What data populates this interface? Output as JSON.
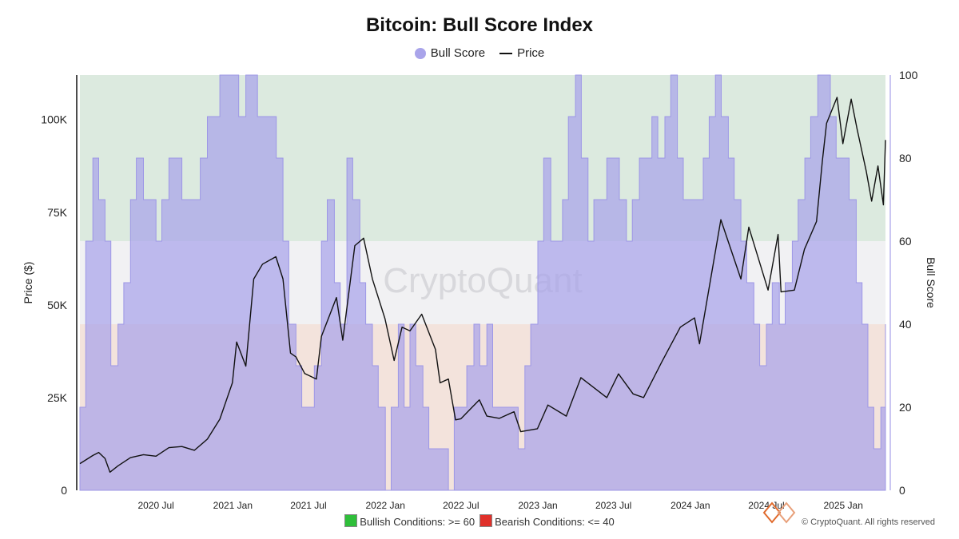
{
  "chart_data": {
    "type": "area",
    "title": "Bitcoin: Bull Score Index",
    "watermark": "CryptoQuant",
    "legend": [
      "Bull Score",
      "Price"
    ],
    "ylabel_left": "Price ($)",
    "ylabel_right": "Bull Score",
    "ylim_left": [
      0,
      112000
    ],
    "ylim_right": [
      0,
      100
    ],
    "yticks_left": [
      {
        "v": 0,
        "label": "0"
      },
      {
        "v": 25000,
        "label": "25K"
      },
      {
        "v": 50000,
        "label": "50K"
      },
      {
        "v": 75000,
        "label": "75K"
      },
      {
        "v": 100000,
        "label": "100K"
      }
    ],
    "yticks_right": [
      0,
      20,
      40,
      60,
      80,
      100
    ],
    "xlim": [
      "2020-01-01",
      "2025-04-12"
    ],
    "xticks": [
      {
        "date": "2020-07-01",
        "label": "2020 Jul"
      },
      {
        "date": "2021-01-01",
        "label": "2021 Jan"
      },
      {
        "date": "2021-07-01",
        "label": "2021 Jul"
      },
      {
        "date": "2022-01-01",
        "label": "2022 Jan"
      },
      {
        "date": "2022-07-01",
        "label": "2022 Jul"
      },
      {
        "date": "2023-01-01",
        "label": "2023 Jan"
      },
      {
        "date": "2023-07-01",
        "label": "2023 Jul"
      },
      {
        "date": "2024-01-01",
        "label": "2024 Jan"
      },
      {
        "date": "2024-07-01",
        "label": "2024 Jul"
      },
      {
        "date": "2025-01-01",
        "label": "2025 Jan"
      }
    ],
    "zones": [
      {
        "from": 60,
        "to": 100,
        "color": "#dceadf"
      },
      {
        "from": 40,
        "to": 60,
        "color": "#f1f1f3"
      },
      {
        "from": 0,
        "to": 40,
        "color": "#f3e3dc"
      }
    ],
    "bull_score": {
      "name": "Bull Score",
      "color": "#a9a4ea",
      "points": [
        [
          "2020-01-01",
          20
        ],
        [
          "2020-01-15",
          60
        ],
        [
          "2020-02-01",
          80
        ],
        [
          "2020-02-15",
          70
        ],
        [
          "2020-03-01",
          60
        ],
        [
          "2020-03-15",
          30
        ],
        [
          "2020-04-01",
          40
        ],
        [
          "2020-04-15",
          50
        ],
        [
          "2020-05-01",
          70
        ],
        [
          "2020-05-15",
          80
        ],
        [
          "2020-06-01",
          70
        ],
        [
          "2020-06-15",
          70
        ],
        [
          "2020-07-01",
          60
        ],
        [
          "2020-07-15",
          70
        ],
        [
          "2020-08-01",
          80
        ],
        [
          "2020-08-15",
          80
        ],
        [
          "2020-09-01",
          70
        ],
        [
          "2020-09-15",
          70
        ],
        [
          "2020-10-01",
          70
        ],
        [
          "2020-10-15",
          80
        ],
        [
          "2020-11-01",
          90
        ],
        [
          "2020-11-15",
          90
        ],
        [
          "2020-12-01",
          100
        ],
        [
          "2020-12-15",
          100
        ],
        [
          "2021-01-01",
          100
        ],
        [
          "2021-01-15",
          90
        ],
        [
          "2021-02-01",
          100
        ],
        [
          "2021-02-15",
          100
        ],
        [
          "2021-03-01",
          90
        ],
        [
          "2021-03-15",
          90
        ],
        [
          "2021-04-01",
          90
        ],
        [
          "2021-04-15",
          80
        ],
        [
          "2021-05-01",
          60
        ],
        [
          "2021-05-15",
          40
        ],
        [
          "2021-06-01",
          30
        ],
        [
          "2021-06-15",
          20
        ],
        [
          "2021-07-01",
          20
        ],
        [
          "2021-07-15",
          30
        ],
        [
          "2021-08-01",
          60
        ],
        [
          "2021-08-15",
          70
        ],
        [
          "2021-09-01",
          50
        ],
        [
          "2021-09-15",
          40
        ],
        [
          "2021-10-01",
          80
        ],
        [
          "2021-10-15",
          70
        ],
        [
          "2021-11-01",
          50
        ],
        [
          "2021-11-15",
          40
        ],
        [
          "2021-12-01",
          30
        ],
        [
          "2021-12-15",
          20
        ],
        [
          "2022-01-01",
          0
        ],
        [
          "2022-01-15",
          20
        ],
        [
          "2022-02-01",
          40
        ],
        [
          "2022-02-15",
          20
        ],
        [
          "2022-03-01",
          40
        ],
        [
          "2022-03-15",
          30
        ],
        [
          "2022-04-01",
          20
        ],
        [
          "2022-04-15",
          10
        ],
        [
          "2022-05-01",
          10
        ],
        [
          "2022-05-15",
          10
        ],
        [
          "2022-06-01",
          0
        ],
        [
          "2022-06-15",
          20
        ],
        [
          "2022-07-01",
          20
        ],
        [
          "2022-07-15",
          30
        ],
        [
          "2022-08-01",
          40
        ],
        [
          "2022-08-15",
          30
        ],
        [
          "2022-09-01",
          40
        ],
        [
          "2022-09-15",
          20
        ],
        [
          "2022-10-01",
          20
        ],
        [
          "2022-10-15",
          20
        ],
        [
          "2022-11-01",
          20
        ],
        [
          "2022-11-15",
          10
        ],
        [
          "2022-12-01",
          30
        ],
        [
          "2022-12-15",
          40
        ],
        [
          "2023-01-01",
          60
        ],
        [
          "2023-01-15",
          80
        ],
        [
          "2023-02-01",
          60
        ],
        [
          "2023-02-15",
          60
        ],
        [
          "2023-03-01",
          70
        ],
        [
          "2023-03-15",
          90
        ],
        [
          "2023-04-01",
          100
        ],
        [
          "2023-04-15",
          80
        ],
        [
          "2023-05-01",
          60
        ],
        [
          "2023-05-15",
          70
        ],
        [
          "2023-06-01",
          70
        ],
        [
          "2023-06-15",
          80
        ],
        [
          "2023-07-01",
          80
        ],
        [
          "2023-07-15",
          70
        ],
        [
          "2023-08-01",
          60
        ],
        [
          "2023-08-15",
          70
        ],
        [
          "2023-09-01",
          80
        ],
        [
          "2023-09-15",
          80
        ],
        [
          "2023-10-01",
          90
        ],
        [
          "2023-10-15",
          80
        ],
        [
          "2023-11-01",
          90
        ],
        [
          "2023-11-15",
          100
        ],
        [
          "2023-12-01",
          80
        ],
        [
          "2023-12-15",
          70
        ],
        [
          "2024-01-01",
          70
        ],
        [
          "2024-01-15",
          70
        ],
        [
          "2024-02-01",
          80
        ],
        [
          "2024-02-15",
          90
        ],
        [
          "2024-03-01",
          100
        ],
        [
          "2024-03-15",
          90
        ],
        [
          "2024-04-01",
          80
        ],
        [
          "2024-04-15",
          70
        ],
        [
          "2024-05-01",
          60
        ],
        [
          "2024-05-15",
          50
        ],
        [
          "2024-06-01",
          40
        ],
        [
          "2024-06-15",
          30
        ],
        [
          "2024-07-01",
          40
        ],
        [
          "2024-07-15",
          50
        ],
        [
          "2024-08-01",
          40
        ],
        [
          "2024-08-15",
          50
        ],
        [
          "2024-09-01",
          60
        ],
        [
          "2024-09-15",
          70
        ],
        [
          "2024-10-01",
          80
        ],
        [
          "2024-10-15",
          90
        ],
        [
          "2024-11-01",
          100
        ],
        [
          "2024-11-15",
          100
        ],
        [
          "2024-12-01",
          90
        ],
        [
          "2024-12-15",
          80
        ],
        [
          "2025-01-01",
          80
        ],
        [
          "2025-01-15",
          70
        ],
        [
          "2025-02-01",
          50
        ],
        [
          "2025-02-15",
          40
        ],
        [
          "2025-03-01",
          20
        ],
        [
          "2025-03-15",
          10
        ],
        [
          "2025-04-01",
          20
        ],
        [
          "2025-04-12",
          40
        ]
      ]
    },
    "price": {
      "name": "Price",
      "color": "#111111",
      "points": [
        [
          "2020-01-01",
          7200
        ],
        [
          "2020-02-01",
          9400
        ],
        [
          "2020-02-15",
          10200
        ],
        [
          "2020-03-01",
          8600
        ],
        [
          "2020-03-13",
          4900
        ],
        [
          "2020-04-01",
          6600
        ],
        [
          "2020-05-01",
          8800
        ],
        [
          "2020-06-01",
          9600
        ],
        [
          "2020-07-01",
          9200
        ],
        [
          "2020-08-01",
          11500
        ],
        [
          "2020-09-01",
          11800
        ],
        [
          "2020-10-01",
          10800
        ],
        [
          "2020-11-01",
          13800
        ],
        [
          "2020-12-01",
          19200
        ],
        [
          "2020-12-31",
          29000
        ],
        [
          "2021-01-10",
          40000
        ],
        [
          "2021-02-01",
          33500
        ],
        [
          "2021-02-20",
          57000
        ],
        [
          "2021-03-13",
          61000
        ],
        [
          "2021-04-14",
          63000
        ],
        [
          "2021-05-01",
          57000
        ],
        [
          "2021-05-19",
          37000
        ],
        [
          "2021-06-01",
          36000
        ],
        [
          "2021-06-22",
          31500
        ],
        [
          "2021-07-20",
          30000
        ],
        [
          "2021-08-01",
          41500
        ],
        [
          "2021-09-06",
          52000
        ],
        [
          "2021-09-21",
          40500
        ],
        [
          "2021-10-20",
          66000
        ],
        [
          "2021-11-10",
          68000
        ],
        [
          "2021-12-01",
          57000
        ],
        [
          "2021-12-31",
          46300
        ],
        [
          "2022-01-22",
          35000
        ],
        [
          "2022-02-10",
          44000
        ],
        [
          "2022-03-01",
          43000
        ],
        [
          "2022-03-29",
          47500
        ],
        [
          "2022-05-01",
          38000
        ],
        [
          "2022-05-12",
          29000
        ],
        [
          "2022-06-01",
          30000
        ],
        [
          "2022-06-18",
          19000
        ],
        [
          "2022-07-01",
          19300
        ],
        [
          "2022-08-14",
          24400
        ],
        [
          "2022-09-01",
          20000
        ],
        [
          "2022-10-01",
          19400
        ],
        [
          "2022-11-05",
          21200
        ],
        [
          "2022-11-21",
          15800
        ],
        [
          "2022-12-31",
          16600
        ],
        [
          "2023-01-25",
          23000
        ],
        [
          "2023-03-10",
          20000
        ],
        [
          "2023-04-14",
          30400
        ],
        [
          "2023-06-15",
          25000
        ],
        [
          "2023-07-13",
          31400
        ],
        [
          "2023-08-17",
          26000
        ],
        [
          "2023-09-11",
          25000
        ],
        [
          "2023-10-24",
          34500
        ],
        [
          "2023-12-08",
          44000
        ],
        [
          "2024-01-11",
          46500
        ],
        [
          "2024-01-23",
          39500
        ],
        [
          "2024-03-14",
          73000
        ],
        [
          "2024-05-01",
          57000
        ],
        [
          "2024-05-20",
          71000
        ],
        [
          "2024-07-05",
          54000
        ],
        [
          "2024-07-29",
          69000
        ],
        [
          "2024-08-05",
          53500
        ],
        [
          "2024-09-06",
          54000
        ],
        [
          "2024-09-30",
          65000
        ],
        [
          "2024-10-29",
          72500
        ],
        [
          "2024-11-12",
          89000
        ],
        [
          "2024-11-22",
          99000
        ],
        [
          "2024-12-17",
          106000
        ],
        [
          "2024-12-31",
          93500
        ],
        [
          "2025-01-20",
          105500
        ],
        [
          "2025-02-03",
          97500
        ],
        [
          "2025-02-25",
          86000
        ],
        [
          "2025-03-10",
          78000
        ],
        [
          "2025-03-25",
          87500
        ],
        [
          "2025-04-07",
          77000
        ],
        [
          "2025-04-12",
          94500
        ]
      ]
    }
  },
  "footer": {
    "bullish_label": "Bullish Conditions: >= 60",
    "bearish_label": "Bearish Conditions: <= 40",
    "copyright": "© CryptoQuant. All rights reserved"
  }
}
